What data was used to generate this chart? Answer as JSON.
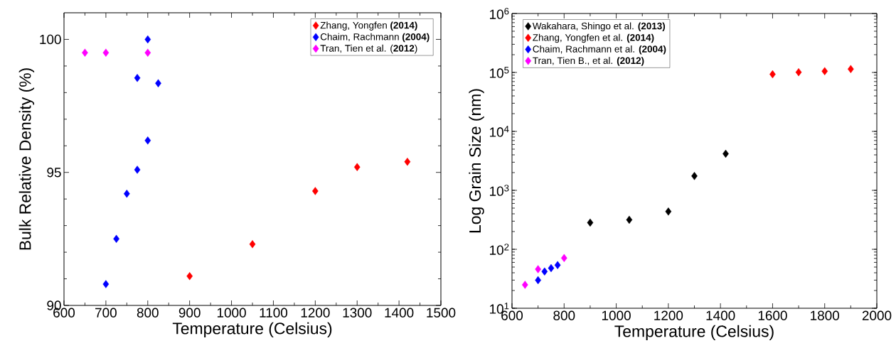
{
  "chart_data": [
    {
      "type": "scatter",
      "xlabel": "Temperature (Celsius)",
      "ylabel": "Bulk Relative Density (%)",
      "xlim": [
        600,
        1500
      ],
      "ylim": [
        90,
        101
      ],
      "xticks": [
        600,
        700,
        800,
        900,
        1000,
        1100,
        1200,
        1300,
        1400,
        1500
      ],
      "yticks": [
        90,
        95,
        100
      ],
      "legend": "top right",
      "marker": "diamond",
      "grid": false,
      "series": [
        {
          "name": "Zhang, Yongfen **(2014)**",
          "color": "#ff0000",
          "x": [
            900,
            1050,
            1200,
            1300,
            1420
          ],
          "values": [
            91.1,
            92.3,
            94.3,
            95.2,
            95.4
          ]
        },
        {
          "name": "Chaim, Rachmann **(2004)**",
          "color": "#0000ff",
          "x": [
            800,
            775,
            825,
            800,
            775,
            750,
            725,
            700
          ],
          "values": [
            100.0,
            98.55,
            98.35,
            96.2,
            95.1,
            94.2,
            92.5,
            90.8
          ]
        },
        {
          "name": "Tran, Tien et al. (**2012**)",
          "color": "#ff00ff",
          "x": [
            650,
            700,
            800
          ],
          "values": [
            99.5,
            99.5,
            99.5
          ]
        }
      ]
    },
    {
      "type": "scatter",
      "xlabel": "Temperature (Celsius)",
      "ylabel": "Log Grain Size (nm)",
      "log": "y",
      "xlim": [
        600,
        2000
      ],
      "ylim": [
        10,
        1000000
      ],
      "xticks": [
        600,
        800,
        1000,
        1200,
        1400,
        1600,
        1800,
        2000
      ],
      "yticks": [
        {
          "value": 10,
          "label": "10$^{1}$"
        },
        {
          "value": 100,
          "label": "10$^{2}$"
        },
        {
          "value": 1000,
          "label": "10$^{3}$"
        },
        {
          "value": 10000,
          "label": "10$^{4}$"
        },
        {
          "value": 100000,
          "label": "10$^{5}$"
        },
        {
          "value": 1000000,
          "label": "10$^{6}$"
        }
      ],
      "legend": "top left",
      "marker": "diamond",
      "grid": false,
      "series": [
        {
          "name": "Wakahara, Shingo et al. **(2013)**",
          "color": "#000000",
          "x": [
            900,
            1050,
            1200,
            1300,
            1420
          ],
          "values": [
            284,
            317,
            437,
            1750,
            4180
          ]
        },
        {
          "name": "Zhang, Yongfen et al. **(2014)**",
          "color": "#ff0000",
          "x": [
            1600,
            1700,
            1800,
            1900
          ],
          "values": [
            93000,
            101000,
            105000,
            114000
          ]
        },
        {
          "name": "Chaim, Rachmann et al. **(2004)**",
          "color": "#0000ff",
          "x": [
            700,
            725,
            750,
            775
          ],
          "values": [
            30,
            42,
            48,
            54
          ]
        },
        {
          "name": "Tran, Tien B., et al. **(2012)**",
          "color": "#ff00ff",
          "x": [
            650,
            700,
            800
          ],
          "values": [
            25,
            46,
            71
          ]
        }
      ]
    }
  ]
}
